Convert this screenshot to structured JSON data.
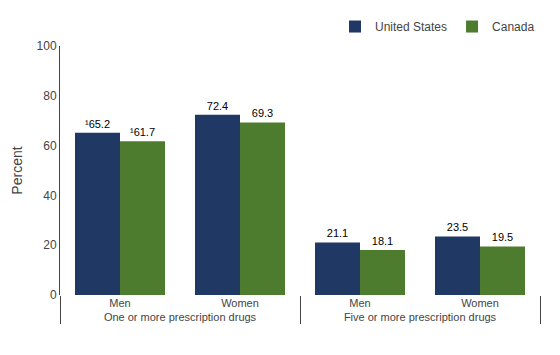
{
  "chart_data": {
    "type": "bar",
    "categories": [
      "Men",
      "Women",
      "Men",
      "Women"
    ],
    "category_groups": [
      "One or more prescription drugs",
      "One or more prescription drugs",
      "Five or more prescription drugs",
      "Five or more prescription drugs"
    ],
    "series": [
      {
        "name": "United States",
        "color": "#1F3864",
        "values": [
          65.2,
          72.4,
          21.1,
          23.5
        ],
        "value_labels": [
          "¹65.2",
          "72.4",
          "21.1",
          "23.5"
        ]
      },
      {
        "name": "Canada",
        "color": "#4E7C2F",
        "values": [
          61.7,
          69.3,
          18.1,
          19.5
        ],
        "value_labels": [
          "¹61.7",
          "69.3",
          "18.1",
          "19.5"
        ]
      }
    ],
    "ylabel": "Percent",
    "ylim": [
      0,
      100
    ],
    "yticks": [
      0,
      20,
      40,
      60,
      80,
      100
    ],
    "grid": false,
    "legend": "upper right",
    "data_labels": true
  }
}
